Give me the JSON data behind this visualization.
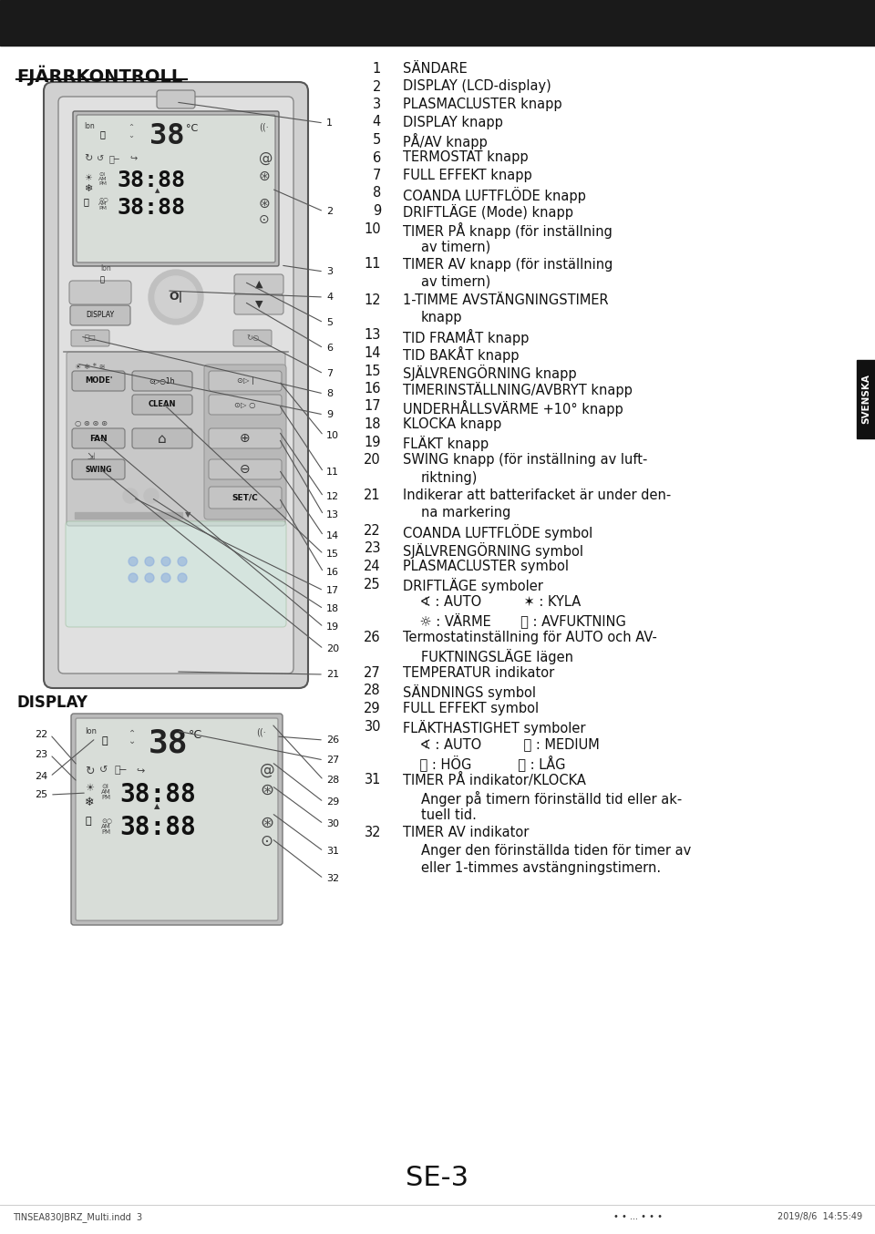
{
  "bg_color": "#ffffff",
  "header_bg": "#1a1a1a",
  "title": "FJÄRRKONTROLL",
  "display_title": "DISPLAY",
  "page_label": "SE-3",
  "footer_left": "TINSEA830JBRZ_Multi.indd  3",
  "footer_right": "2019/8/6  14:55:49",
  "svenska_label": "SVENSKA",
  "right_items": [
    [
      "1",
      "SÄNDARE",
      false
    ],
    [
      "2",
      "DISPLAY (LCD-display)",
      false
    ],
    [
      "3",
      "PLASMACLUSTER knapp",
      false
    ],
    [
      "4",
      "DISPLAY knapp",
      false
    ],
    [
      "5",
      "PÅ/AV knapp",
      false
    ],
    [
      "6",
      "TERMOSTAT knapp",
      false
    ],
    [
      "7",
      "FULL EFFEKT knapp",
      false
    ],
    [
      "8",
      "COANDA LUFTFLÖDE knapp",
      false
    ],
    [
      "9",
      "DRIFTLÄGE (Mode) knapp",
      false
    ],
    [
      "10",
      "TIMER PÅ knapp (för inställning",
      false
    ],
    [
      "",
      "av timern)",
      true
    ],
    [
      "11",
      "TIMER AV knapp (för inställning",
      false
    ],
    [
      "",
      "av timern)",
      true
    ],
    [
      "12",
      "1-TIMME AVSTÄNGNINGSTIMER",
      false
    ],
    [
      "",
      "knapp",
      true
    ],
    [
      "13",
      "TID FRAMÅT knapp",
      false
    ],
    [
      "14",
      "TID BAKÅT knapp",
      false
    ],
    [
      "15",
      "SJÄLVRENGÖRNING knapp",
      false
    ],
    [
      "16",
      "TIMERINSTÄLLNING/AVBRYT knapp",
      false
    ],
    [
      "17",
      "UNDERHÅLLSVÄRME +10° knapp",
      false
    ],
    [
      "18",
      "KLOCKA knapp",
      false
    ],
    [
      "19",
      "FLÄKT knapp",
      false
    ],
    [
      "20",
      "SWING knapp (för inställning av luft-",
      false
    ],
    [
      "",
      "riktning)",
      true
    ],
    [
      "21",
      "Indikerar att batterifacket är under den-",
      false
    ],
    [
      "",
      "na markering",
      true
    ],
    [
      "22",
      "COANDA LUFTFLÖDE symbol",
      false
    ],
    [
      "23",
      "SJÄLVRENGÖRNING symbol",
      false
    ],
    [
      "24",
      "PLASMACLUSTER symbol",
      false
    ],
    [
      "25",
      "DRIFTLÄGE symboler",
      false
    ],
    [
      "",
      "  ∢ : AUTO          ✶ : KYLA",
      false
    ],
    [
      "",
      "  ☀ : VÄRME       ⦾ : AVFUKTNING",
      false
    ],
    [
      "26",
      "Termostatinställning för AUTO och AV-",
      false
    ],
    [
      "",
      "FUKTNINGSLÄGE lägen",
      true
    ],
    [
      "27",
      "TEMPERATUR indikator",
      false
    ],
    [
      "28",
      "SÄNDNINGS symbol",
      false
    ],
    [
      "29",
      "FULL EFFEKT symbol",
      false
    ],
    [
      "30",
      "FLÄKTHASTIGHET symboler",
      false
    ],
    [
      "",
      "  ∢ : AUTO          ⦻ : MEDIUM",
      false
    ],
    [
      "",
      "  ⦻ : HÖG           ⦻ : LÅG",
      false
    ],
    [
      "31",
      "TIMER PÅ indikator/KLOCKA",
      false
    ],
    [
      "",
      "Anger på timern förinställd tid eller ak-",
      true
    ],
    [
      "",
      "tuell tid.",
      true
    ],
    [
      "32",
      "TIMER AV indikator",
      false
    ],
    [
      "",
      "Anger den förinställda tiden för timer av",
      true
    ],
    [
      "",
      "eller 1-timmes avstängningstimern.",
      true
    ]
  ]
}
